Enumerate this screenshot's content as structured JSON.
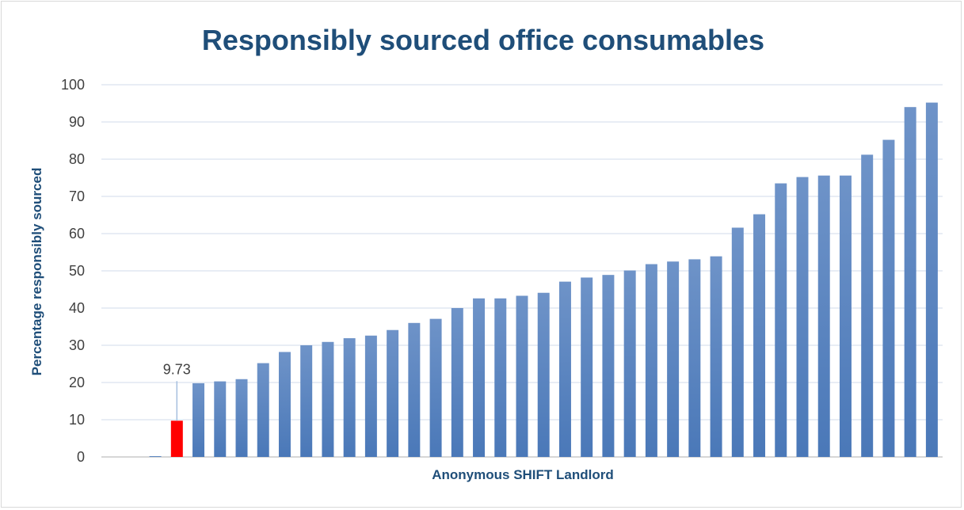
{
  "chart_data": {
    "type": "bar",
    "title": "Responsibly sourced office consumables",
    "xlabel": "Anonymous SHIFT Landlord",
    "ylabel": "Percentage responsibly sourced",
    "ylim": [
      0,
      100
    ],
    "yticks": [
      0,
      10,
      20,
      30,
      40,
      50,
      60,
      70,
      80,
      90,
      100
    ],
    "grid": true,
    "colors": {
      "default": "#4a78b8",
      "highlight": "#ff0000",
      "title": "#1f4e79",
      "grid": "#d9e2ef"
    },
    "values": [
      0,
      0,
      0.2,
      9.73,
      19.8,
      20.3,
      20.9,
      25.2,
      28.2,
      30.0,
      30.9,
      31.9,
      32.6,
      34.1,
      36.0,
      37.1,
      40.0,
      42.6,
      42.6,
      43.3,
      44.1,
      47.1,
      48.2,
      48.9,
      50.1,
      51.8,
      52.5,
      53.1,
      53.9,
      61.6,
      65.2,
      73.5,
      75.2,
      75.6,
      75.6,
      81.2,
      85.2,
      94.0,
      95.2
    ],
    "highlight_index": 3,
    "highlight_label": "9.73"
  }
}
